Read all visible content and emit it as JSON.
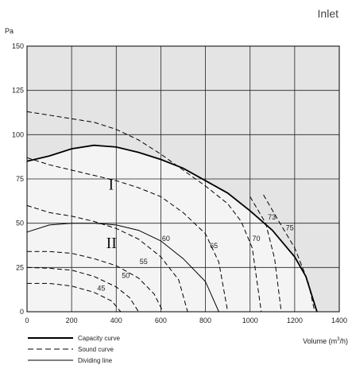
{
  "chart_data": {
    "type": "line",
    "title": "Inlet",
    "ylabel": "Pa",
    "xlabel_prefix": "Volume (m",
    "xlabel_sup": "3",
    "xlabel_suffix": "/h)",
    "xlim": [
      0,
      1400
    ],
    "ylim": [
      0,
      150
    ],
    "xticks": [
      0,
      200,
      400,
      600,
      800,
      1000,
      1200,
      1400
    ],
    "yticks": [
      0,
      25,
      50,
      75,
      100,
      125,
      150
    ],
    "grid": true,
    "region_labels": [
      {
        "text": "I",
        "x": 365,
        "y": 69
      },
      {
        "text": "II",
        "x": 355,
        "y": 36
      }
    ],
    "capacity_curve": {
      "name": "Capacity curve",
      "points": [
        [
          0,
          85
        ],
        [
          100,
          88
        ],
        [
          200,
          92
        ],
        [
          300,
          94
        ],
        [
          400,
          93
        ],
        [
          500,
          90
        ],
        [
          600,
          86
        ],
        [
          700,
          81
        ],
        [
          800,
          74
        ],
        [
          900,
          67
        ],
        [
          1000,
          57
        ],
        [
          1100,
          46
        ],
        [
          1200,
          31
        ],
        [
          1250,
          20
        ],
        [
          1300,
          0
        ]
      ]
    },
    "sound_curves": [
      {
        "label": "45",
        "lx": 315,
        "ly": 12,
        "points": [
          [
            0,
            16
          ],
          [
            100,
            16
          ],
          [
            200,
            14.5
          ],
          [
            300,
            11
          ],
          [
            380,
            6
          ],
          [
            420,
            0
          ]
        ]
      },
      {
        "label": "50",
        "lx": 425,
        "ly": 19,
        "points": [
          [
            0,
            25
          ],
          [
            100,
            24.5
          ],
          [
            200,
            23.5
          ],
          [
            300,
            20
          ],
          [
            400,
            14
          ],
          [
            460,
            8
          ],
          [
            500,
            0
          ]
        ]
      },
      {
        "label": "55",
        "lx": 505,
        "ly": 27,
        "points": [
          [
            0,
            34
          ],
          [
            100,
            34
          ],
          [
            200,
            33
          ],
          [
            300,
            30
          ],
          [
            400,
            26
          ],
          [
            500,
            19
          ],
          [
            570,
            10
          ],
          [
            610,
            0
          ]
        ]
      },
      {
        "label": "60",
        "lx": 605,
        "ly": 40,
        "points": [
          [
            0,
            60
          ],
          [
            100,
            56
          ],
          [
            200,
            54
          ],
          [
            300,
            51
          ],
          [
            400,
            47
          ],
          [
            500,
            41
          ],
          [
            600,
            31
          ],
          [
            680,
            18
          ],
          [
            720,
            0
          ]
        ]
      },
      {
        "label": "65",
        "lx": 820,
        "ly": 36,
        "points": [
          [
            0,
            87
          ],
          [
            100,
            83
          ],
          [
            200,
            80
          ],
          [
            300,
            77
          ],
          [
            400,
            74
          ],
          [
            500,
            70
          ],
          [
            600,
            65
          ],
          [
            700,
            56
          ],
          [
            800,
            44
          ],
          [
            860,
            28
          ],
          [
            900,
            0
          ]
        ]
      },
      {
        "label": "70",
        "lx": 1010,
        "ly": 40,
        "points": [
          [
            0,
            113
          ],
          [
            100,
            111
          ],
          [
            200,
            109
          ],
          [
            300,
            107
          ],
          [
            400,
            103
          ],
          [
            500,
            97
          ],
          [
            600,
            89
          ],
          [
            700,
            80
          ],
          [
            800,
            71
          ],
          [
            900,
            61
          ],
          [
            960,
            51
          ],
          [
            1010,
            36
          ],
          [
            1050,
            0
          ]
        ]
      },
      {
        "label": "73",
        "lx": 1080,
        "ly": 52,
        "points": [
          [
            1000,
            65
          ],
          [
            1070,
            50
          ],
          [
            1110,
            30
          ],
          [
            1140,
            0
          ]
        ]
      },
      {
        "label": "75",
        "lx": 1160,
        "ly": 46,
        "points": [
          [
            1060,
            66
          ],
          [
            1120,
            53
          ],
          [
            1200,
            36
          ],
          [
            1260,
            17
          ],
          [
            1290,
            0
          ]
        ]
      }
    ],
    "dividing_lines": [
      {
        "points": [
          [
            0,
            45
          ],
          [
            100,
            49
          ],
          [
            200,
            50
          ],
          [
            300,
            50
          ],
          [
            400,
            49
          ],
          [
            500,
            46
          ],
          [
            600,
            40
          ],
          [
            700,
            30
          ],
          [
            800,
            17
          ],
          [
            860,
            0
          ]
        ]
      }
    ],
    "legend": [
      {
        "style": "solid-thick",
        "label": "Capacity curve"
      },
      {
        "style": "dashed",
        "label": "Sound curve"
      },
      {
        "style": "solid-thin",
        "label": "Dividing line"
      }
    ]
  },
  "colors": {
    "outside_bg": "#e4e4e4",
    "inside_bg": "#f4f4f4",
    "grid": "#222222",
    "curve": "#000000"
  }
}
